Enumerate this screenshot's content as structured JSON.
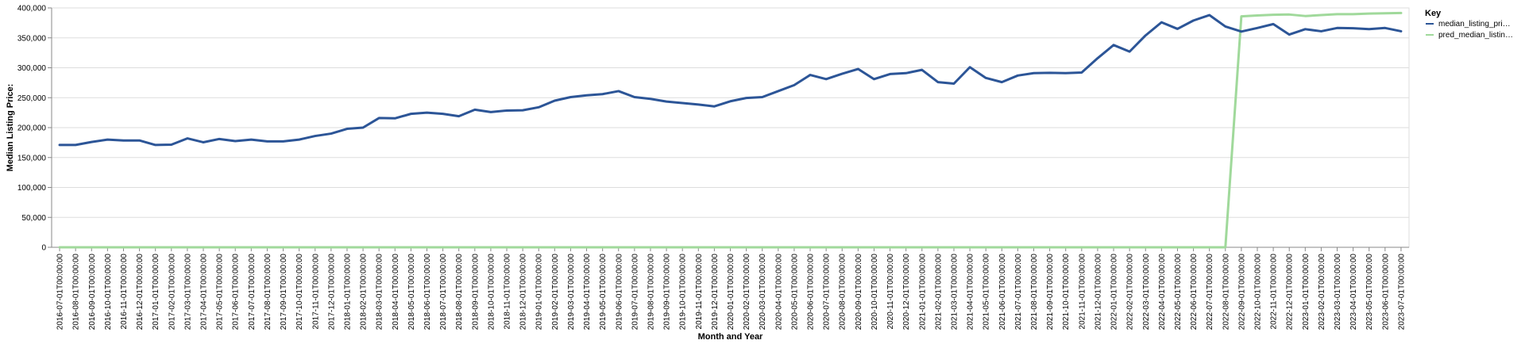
{
  "chart_data": {
    "type": "line",
    "xlabel": "Month and Year",
    "ylabel": "Median Listing Price:",
    "ylim": [
      0,
      400000
    ],
    "yticks": [
      0,
      50000,
      100000,
      150000,
      200000,
      250000,
      300000,
      350000,
      400000
    ],
    "ytick_labels": [
      "0",
      "50,000",
      "100,000",
      "150,000",
      "200,000",
      "250,000",
      "300,000",
      "350,000",
      "400,000"
    ],
    "grid": true,
    "legend": {
      "title": "Key",
      "placement": "right",
      "entries": [
        {
          "label": "median_listing_pri…",
          "color": "#2c5597"
        },
        {
          "label": "pred_median_listin…",
          "color": "#a0d99b"
        }
      ]
    },
    "x": [
      "2016-07-01T00:00:00",
      "2016-08-01T00:00:00",
      "2016-09-01T00:00:00",
      "2016-10-01T00:00:00",
      "2016-11-01T00:00:00",
      "2016-12-01T00:00:00",
      "2017-01-01T00:00:00",
      "2017-02-01T00:00:00",
      "2017-03-01T00:00:00",
      "2017-04-01T00:00:00",
      "2017-05-01T00:00:00",
      "2017-06-01T00:00:00",
      "2017-07-01T00:00:00",
      "2017-08-01T00:00:00",
      "2017-09-01T00:00:00",
      "2017-10-01T00:00:00",
      "2017-11-01T00:00:00",
      "2017-12-01T00:00:00",
      "2018-01-01T00:00:00",
      "2018-02-01T00:00:00",
      "2018-03-01T00:00:00",
      "2018-04-01T00:00:00",
      "2018-05-01T00:00:00",
      "2018-06-01T00:00:00",
      "2018-07-01T00:00:00",
      "2018-08-01T00:00:00",
      "2018-09-01T00:00:00",
      "2018-10-01T00:00:00",
      "2018-11-01T00:00:00",
      "2018-12-01T00:00:00",
      "2019-01-01T00:00:00",
      "2019-02-01T00:00:00",
      "2019-03-01T00:00:00",
      "2019-04-01T00:00:00",
      "2019-05-01T00:00:00",
      "2019-06-01T00:00:00",
      "2019-07-01T00:00:00",
      "2019-08-01T00:00:00",
      "2019-09-01T00:00:00",
      "2019-10-01T00:00:00",
      "2019-11-01T00:00:00",
      "2019-12-01T00:00:00",
      "2020-01-01T00:00:00",
      "2020-02-01T00:00:00",
      "2020-03-01T00:00:00",
      "2020-04-01T00:00:00",
      "2020-05-01T00:00:00",
      "2020-06-01T00:00:00",
      "2020-07-01T00:00:00",
      "2020-08-01T00:00:00",
      "2020-09-01T00:00:00",
      "2020-10-01T00:00:00",
      "2020-11-01T00:00:00",
      "2020-12-01T00:00:00",
      "2021-01-01T00:00:00",
      "2021-02-01T00:00:00",
      "2021-03-01T00:00:00",
      "2021-04-01T00:00:00",
      "2021-05-01T00:00:00",
      "2021-06-01T00:00:00",
      "2021-07-01T00:00:00",
      "2021-08-01T00:00:00",
      "2021-09-01T00:00:00",
      "2021-10-01T00:00:00",
      "2021-11-01T00:00:00",
      "2021-12-01T00:00:00",
      "2022-01-01T00:00:00",
      "2022-02-01T00:00:00",
      "2022-03-01T00:00:00",
      "2022-04-01T00:00:00",
      "2022-05-01T00:00:00",
      "2022-06-01T00:00:00",
      "2022-07-01T00:00:00",
      "2022-08-01T00:00:00",
      "2022-09-01T00:00:00",
      "2022-10-01T00:00:00",
      "2022-11-01T00:00:00",
      "2022-12-01T00:00:00",
      "2023-01-01T00:00:00",
      "2023-02-01T00:00:00",
      "2023-03-01T00:00:00",
      "2023-04-01T00:00:00",
      "2023-05-01T00:00:00",
      "2023-06-01T00:00:00",
      "2023-07-01T00:00:00"
    ],
    "series": [
      {
        "name": "median_listing_pri…",
        "color": "#2c5597",
        "values": [
          171000,
          171000,
          176000,
          180000,
          178500,
          178500,
          171000,
          171500,
          182000,
          175500,
          181000,
          177500,
          180000,
          177000,
          177000,
          180000,
          186000,
          190000,
          198000,
          200000,
          216000,
          215500,
          223000,
          225000,
          223000,
          219000,
          230000,
          226000,
          228500,
          229000,
          234000,
          245000,
          251000,
          254000,
          256000,
          261000,
          251000,
          248000,
          243500,
          241000,
          238500,
          235500,
          244000,
          249500,
          251000,
          261000,
          271000,
          288000,
          281000,
          290000,
          298000,
          281000,
          289500,
          291000,
          296500,
          276000,
          273500,
          301000,
          283000,
          276000,
          287000,
          291000,
          291500,
          291000,
          292000,
          316000,
          338000,
          327000,
          354000,
          376000,
          365000,
          379000,
          388000,
          369000,
          360500,
          366500,
          373000,
          355500,
          364500,
          361000,
          366500,
          366000,
          364500,
          366500,
          361000
        ]
      },
      {
        "name": "pred_median_listin…",
        "color": "#a0d99b",
        "values": [
          0,
          0,
          0,
          0,
          0,
          0,
          0,
          0,
          0,
          0,
          0,
          0,
          0,
          0,
          0,
          0,
          0,
          0,
          0,
          0,
          0,
          0,
          0,
          0,
          0,
          0,
          0,
          0,
          0,
          0,
          0,
          0,
          0,
          0,
          0,
          0,
          0,
          0,
          0,
          0,
          0,
          0,
          0,
          0,
          0,
          0,
          0,
          0,
          0,
          0,
          0,
          0,
          0,
          0,
          0,
          0,
          0,
          0,
          0,
          0,
          0,
          0,
          0,
          0,
          0,
          0,
          0,
          0,
          0,
          0,
          0,
          0,
          0,
          0,
          386000,
          387500,
          388500,
          389000,
          386500,
          388000,
          389500,
          389500,
          390500,
          391000,
          391500
        ]
      }
    ]
  }
}
